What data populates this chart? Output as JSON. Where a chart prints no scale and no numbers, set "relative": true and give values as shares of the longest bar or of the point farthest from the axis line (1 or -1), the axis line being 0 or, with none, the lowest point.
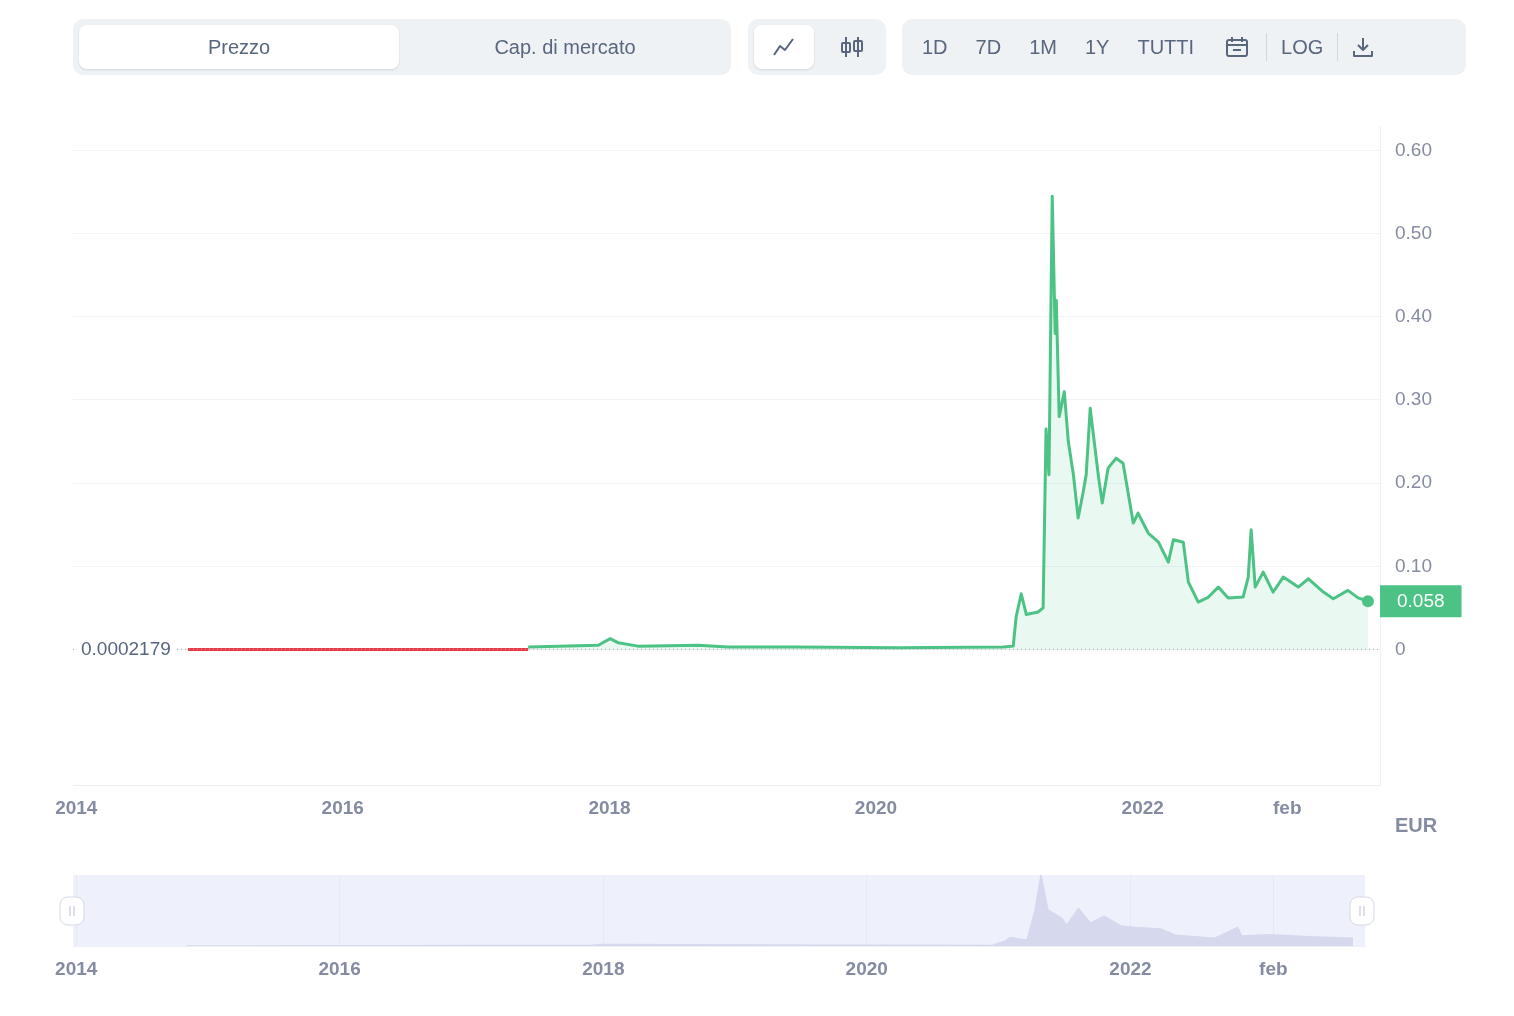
{
  "chart_data": [
    {
      "type": "line",
      "annotations": [
        "Prezzo",
        "Cap. di mercato",
        "1D",
        "7D",
        "1M",
        "1Y",
        "TUTTI",
        "LOG",
        {
          "text": "0.058",
          "x": "2023-09-10",
          "y": 0.058
        }
      ],
      "ylabel": "EUR",
      "xlim": [
        "2013-12-23",
        "2023-10-13"
      ],
      "ylim": [
        -0.163,
        0.629
      ],
      "xticks": [
        {
          "value": "2014-01-01",
          "label": "2014"
        },
        {
          "value": "2016-01-01",
          "label": "2016"
        },
        {
          "value": "2018-01-01",
          "label": "2018"
        },
        {
          "value": "2020-01-01",
          "label": "2020"
        },
        {
          "value": "2022-01-01",
          "label": "2022"
        },
        {
          "value": "2023-02-01",
          "label": "feb"
        }
      ],
      "yticks": [
        0,
        {
          "value": 0.1,
          "label": "0.10"
        },
        {
          "value": 0.2,
          "label": "0.20"
        },
        {
          "value": 0.3,
          "label": "0.30"
        },
        {
          "value": 0.4,
          "label": "0.40"
        },
        {
          "value": 0.5,
          "label": "0.50"
        },
        {
          "value": 0.6,
          "label": "0.60"
        }
      ],
      "grid": "y",
      "legend": false,
      "ref_lines": [
        {
          "axis": "y",
          "value": 0.0002179,
          "label": "0.0002179",
          "color": "#a6abb8",
          "line_style": "dotted"
        }
      ],
      "series": [
        {
          "type": "line",
          "color": "#ea3943",
          "x": [
            "2014-11-03",
            "2016-01-01",
            "2017-05-23"
          ],
          "values": [
            0,
            0,
            0
          ]
        },
        {
          "type": "area",
          "color": "#4cc384",
          "x": [
            "2017-05-23",
            "2017-08-13",
            "2017-12-01",
            "2018-01-03",
            "2018-01-25",
            "2018-03-20",
            "2018-09-01",
            "2018-11-22",
            "2019-06-02",
            "2020-03-01",
            "2020-12-14",
            "2021-01-11",
            "2021-01-19",
            "2021-02-02",
            "2021-02-16",
            "2021-03-20",
            "2021-04-03",
            "2021-04-11",
            "2021-04-19",
            "2021-04-28",
            "2021-05-06",
            "2021-05-09",
            "2021-05-17",
            "2021-05-31",
            "2021-06-11",
            "2021-06-25",
            "2021-07-08",
            "2021-07-22",
            "2021-07-30",
            "2021-08-10",
            "2021-08-21",
            "2021-09-01",
            "2021-09-12",
            "2021-09-28",
            "2021-10-20",
            "2021-11-08",
            "2021-11-22",
            "2021-12-06",
            "2021-12-19",
            "2022-01-16",
            "2022-02-13",
            "2022-03-12",
            "2022-03-26",
            "2022-04-22",
            "2022-05-06",
            "2022-06-02",
            "2022-06-30",
            "2022-07-27",
            "2022-08-23",
            "2022-10-03",
            "2022-10-17",
            "2022-10-25",
            "2022-11-05",
            "2022-11-27",
            "2022-12-24",
            "2023-01-21",
            "2023-03-03",
            "2023-03-31",
            "2023-05-11",
            "2023-06-07",
            "2023-07-17",
            "2023-08-14",
            "2023-09-10"
          ],
          "values": [
            0.003,
            0.004,
            0.005,
            0.013,
            0.008,
            0.004,
            0.005,
            0.003,
            0.003,
            0.002,
            0.003,
            0.004,
            0.039,
            0.067,
            0.042,
            0.045,
            0.05,
            0.265,
            0.21,
            0.545,
            0.38,
            0.42,
            0.28,
            0.31,
            0.25,
            0.21,
            0.158,
            0.19,
            0.21,
            0.29,
            0.25,
            0.21,
            0.176,
            0.218,
            0.23,
            0.224,
            0.188,
            0.152,
            0.164,
            0.14,
            0.129,
            0.105,
            0.132,
            0.129,
            0.081,
            0.057,
            0.063,
            0.075,
            0.062,
            0.063,
            0.087,
            0.144,
            0.075,
            0.093,
            0.069,
            0.087,
            0.075,
            0.085,
            0.069,
            0.061,
            0.071,
            0.062,
            0.058
          ]
        }
      ]
    },
    {
      "type": "area",
      "relative": true,
      "tick_labels": "x",
      "grid": "x",
      "legend": false,
      "xlim": [
        "2013-12-23",
        "2023-10-13"
      ],
      "xticks": [
        {
          "value": "2014-01-01",
          "label": "2014"
        },
        {
          "value": "2016-01-01",
          "label": "2016"
        },
        {
          "value": "2018-01-01",
          "label": "2018"
        },
        {
          "value": "2020-01-01",
          "label": "2020"
        },
        {
          "value": "2022-01-01",
          "label": "2022"
        },
        {
          "value": "2023-02-01",
          "label": "feb"
        }
      ],
      "series": [
        {
          "color": "#d6d9ee",
          "x": [
            "2014-11-03",
            "2017-12-01",
            "2018-01-03",
            "2020-12-14",
            "2021-01-19",
            "2021-02-02",
            "2021-03-20",
            "2021-04-11",
            "2021-04-28",
            "2021-05-17",
            "2021-06-25",
            "2021-07-08",
            "2021-08-10",
            "2021-09-12",
            "2021-10-20",
            "2021-12-06",
            "2022-01-16",
            "2022-03-26",
            "2022-05-06",
            "2022-08-23",
            "2022-10-25",
            "2022-11-05",
            "2023-01-21",
            "2023-05-11",
            "2023-09-10"
          ],
          "values": [
            0,
            0.01,
            0.02,
            0.006,
            0.07,
            0.12,
            0.08,
            0.49,
            1,
            0.51,
            0.39,
            0.29,
            0.53,
            0.32,
            0.42,
            0.28,
            0.26,
            0.24,
            0.15,
            0.11,
            0.26,
            0.14,
            0.16,
            0.13,
            0.11
          ]
        }
      ]
    }
  ]
}
